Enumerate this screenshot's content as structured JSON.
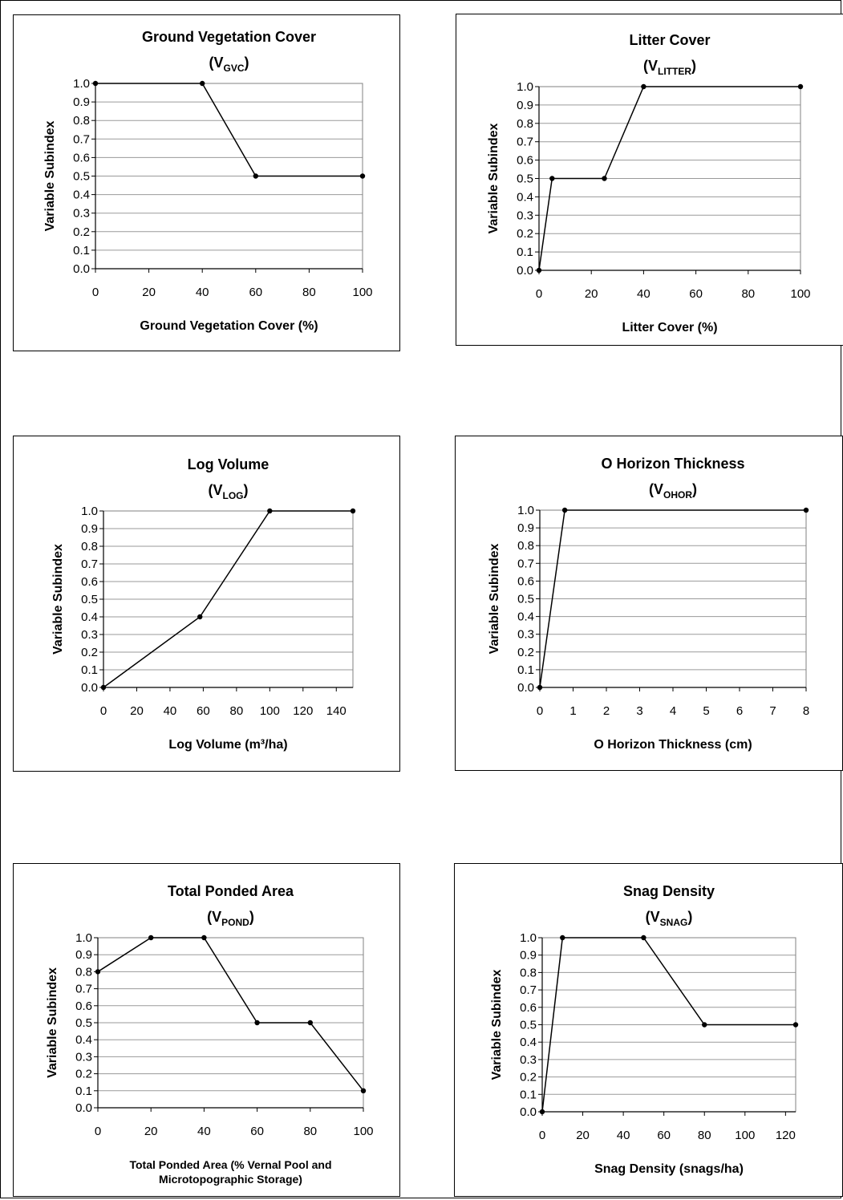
{
  "chart_data": [
    {
      "type": "line",
      "title": "Ground Vegetation Cover",
      "subtitle_main": "(V",
      "subtitle_sub": "GVC",
      "subtitle_end": ")",
      "xlabel": [
        "Ground Vegetation Cover (%)"
      ],
      "ylabel": "Variable Subindex",
      "x": [
        0,
        40,
        60,
        100
      ],
      "y": [
        1.0,
        1.0,
        0.5,
        0.5
      ],
      "xlim": [
        0,
        100
      ],
      "ylim": [
        0,
        1.0
      ],
      "xticks": [
        "0",
        "20",
        "40",
        "60",
        "80",
        "100"
      ],
      "yticks": [
        "0.0",
        "0.1",
        "0.2",
        "0.3",
        "0.4",
        "0.5",
        "0.6",
        "0.7",
        "0.8",
        "0.9",
        "1.0"
      ],
      "grid": true
    },
    {
      "type": "line",
      "title": "Litter Cover",
      "subtitle_main": "(V",
      "subtitle_sub": "LITTER",
      "subtitle_end": ")",
      "xlabel": [
        "Litter Cover (%)"
      ],
      "ylabel": "Variable Subindex",
      "x": [
        0,
        5,
        25,
        40,
        100
      ],
      "y": [
        0.0,
        0.5,
        0.5,
        1.0,
        1.0
      ],
      "xlim": [
        0,
        100
      ],
      "ylim": [
        0,
        1.0
      ],
      "xticks": [
        "0",
        "20",
        "40",
        "60",
        "80",
        "100"
      ],
      "yticks": [
        "0.0",
        "0.1",
        "0.2",
        "0.3",
        "0.4",
        "0.5",
        "0.6",
        "0.7",
        "0.8",
        "0.9",
        "1.0"
      ],
      "grid": true
    },
    {
      "type": "line",
      "title": "Log Volume",
      "subtitle_main": "(V",
      "subtitle_sub": "LOG",
      "subtitle_end": ")",
      "xlabel": [
        "Log Volume (m³/ha)"
      ],
      "ylabel": "Variable Subindex",
      "x": [
        0,
        58,
        100,
        150
      ],
      "y": [
        0.0,
        0.4,
        1.0,
        1.0
      ],
      "xlim": [
        0,
        150
      ],
      "ylim": [
        0,
        1.0
      ],
      "xticks": [
        "0",
        "20",
        "40",
        "60",
        "80",
        "100",
        "120",
        "140"
      ],
      "yticks": [
        "0.0",
        "0.1",
        "0.2",
        "0.3",
        "0.4",
        "0.5",
        "0.6",
        "0.7",
        "0.8",
        "0.9",
        "1.0"
      ],
      "grid": true
    },
    {
      "type": "line",
      "title": "O Horizon Thickness",
      "subtitle_main": "(V",
      "subtitle_sub": "OHOR",
      "subtitle_end": ")",
      "xlabel": [
        "O Horizon Thickness (cm)"
      ],
      "ylabel": "Variable Subindex",
      "x": [
        0,
        0.75,
        8
      ],
      "y": [
        0.0,
        1.0,
        1.0
      ],
      "xlim": [
        0,
        8
      ],
      "ylim": [
        0,
        1.0
      ],
      "xticks": [
        "0",
        "1",
        "2",
        "3",
        "4",
        "5",
        "6",
        "7",
        "8"
      ],
      "yticks": [
        "0.0",
        "0.1",
        "0.2",
        "0.3",
        "0.4",
        "0.5",
        "0.6",
        "0.7",
        "0.8",
        "0.9",
        "1.0"
      ],
      "grid": true
    },
    {
      "type": "line",
      "title": "Total Ponded Area",
      "subtitle_main": "(V",
      "subtitle_sub": "POND",
      "subtitle_end": ")",
      "xlabel": [
        "Total Ponded Area (% Vernal Pool and",
        "Microtopographic Storage)"
      ],
      "ylabel": "Variable Subindex",
      "x": [
        0,
        20,
        40,
        60,
        80,
        100
      ],
      "y": [
        0.8,
        1.0,
        1.0,
        0.5,
        0.5,
        0.1
      ],
      "xlim": [
        0,
        100
      ],
      "ylim": [
        0,
        1.0
      ],
      "xticks": [
        "0",
        "20",
        "40",
        "60",
        "80",
        "100"
      ],
      "yticks": [
        "0.0",
        "0.1",
        "0.2",
        "0.3",
        "0.4",
        "0.5",
        "0.6",
        "0.7",
        "0.8",
        "0.9",
        "1.0"
      ],
      "grid": true
    },
    {
      "type": "line",
      "title": "Snag Density",
      "subtitle_main": "(V",
      "subtitle_sub": "SNAG",
      "subtitle_end": ")",
      "xlabel": [
        "Snag Density (snags/ha)"
      ],
      "ylabel": "Variable Subindex",
      "x": [
        0,
        10,
        50,
        80,
        125
      ],
      "y": [
        0.0,
        1.0,
        1.0,
        0.5,
        0.5
      ],
      "xlim": [
        0,
        125
      ],
      "ylim": [
        0,
        1.0
      ],
      "xticks": [
        "0",
        "20",
        "40",
        "60",
        "80",
        "100",
        "120"
      ],
      "yticks": [
        "0.0",
        "0.1",
        "0.2",
        "0.3",
        "0.4",
        "0.5",
        "0.6",
        "0.7",
        "0.8",
        "0.9",
        "1.0"
      ],
      "grid": true
    }
  ]
}
